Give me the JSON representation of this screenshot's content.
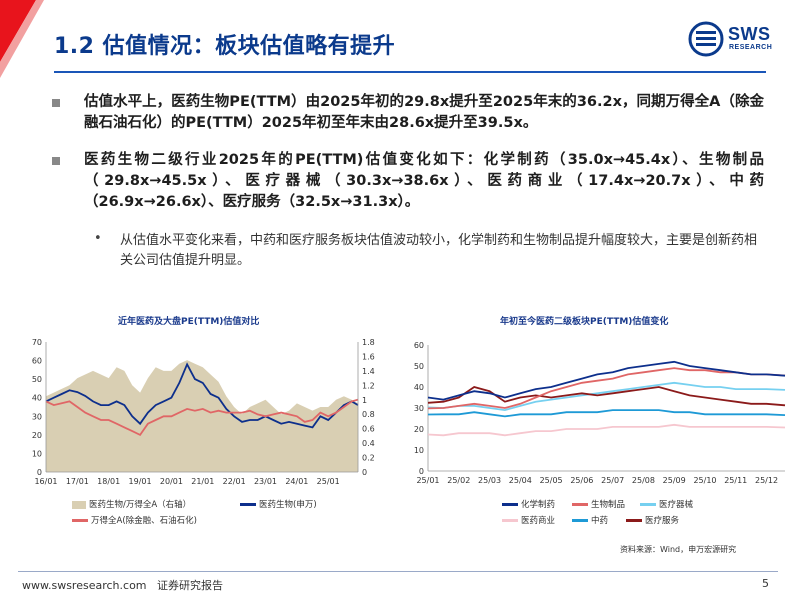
{
  "header": {
    "title": "1.2 估值情况：板块估值略有提升",
    "logo_text": "SWS",
    "logo_subtext": "RESEARCH",
    "accent_color": "#0b3a8c"
  },
  "bullets": [
    {
      "text": "估值水平上，医药生物PE(TTM）由2025年初的29.8x提升至2025年末的36.2x，同期万得全A（除金融石油石化）的PE(TTM）2025年初至年末由28.6x提升至39.5x。"
    },
    {
      "text": "医药生物二级行业2025年的PE(TTM)估值变化如下：化学制药（35.0x→45.4x）、生物制品（29.8x→45.5x）、医疗器械（30.3x→38.6x）、医药商业（17.4x→20.7x）、中药（26.9x→26.6x）、医疗服务（32.5x→31.3x）。"
    }
  ],
  "sub_bullet": {
    "dot": "•",
    "text": "从估值水平变化来看，中药和医疗服务板块估值波动较小，化学制药和生物制品提升幅度较大，主要是创新药相关公司估值提升明显。"
  },
  "chart_data": [
    {
      "type": "line",
      "title": "近年医药及大盘PE(TTM)估值对比",
      "x_ticks": [
        "16/01",
        "17/01",
        "18/01",
        "19/01",
        "20/01",
        "21/01",
        "22/01",
        "23/01",
        "24/01",
        "25/01"
      ],
      "ylim_left": [
        0,
        70
      ],
      "y_ticks_left": [
        0,
        10,
        20,
        30,
        40,
        50,
        60,
        70
      ],
      "ylim_right": [
        0,
        1.8
      ],
      "y_ticks_right": [
        "0",
        "0.2",
        "0.4",
        "0.6",
        "0.8",
        "1",
        "1.2",
        "1.4",
        "1.6",
        "1.8"
      ],
      "x": [
        2016.0,
        2016.25,
        2016.5,
        2016.75,
        2017.0,
        2017.25,
        2017.5,
        2017.75,
        2018.0,
        2018.25,
        2018.5,
        2018.75,
        2019.0,
        2019.25,
        2019.5,
        2019.75,
        2020.0,
        2020.25,
        2020.5,
        2020.75,
        2021.0,
        2021.25,
        2021.5,
        2021.75,
        2022.0,
        2022.25,
        2022.5,
        2022.75,
        2023.0,
        2023.25,
        2023.5,
        2023.75,
        2024.0,
        2024.25,
        2024.5,
        2024.75,
        2025.0,
        2025.25,
        2025.5,
        2025.75,
        2025.95
      ],
      "series": [
        {
          "name": "医药生物/万得全A（右轴）",
          "axis": "right",
          "style": "area",
          "color": "#d9cfb3",
          "values": [
            1.05,
            1.1,
            1.15,
            1.2,
            1.3,
            1.35,
            1.4,
            1.35,
            1.3,
            1.45,
            1.4,
            1.2,
            1.1,
            1.3,
            1.45,
            1.4,
            1.4,
            1.5,
            1.55,
            1.5,
            1.45,
            1.35,
            1.25,
            1.05,
            0.9,
            0.8,
            0.9,
            0.95,
            1.0,
            0.9,
            0.8,
            0.85,
            0.95,
            0.9,
            0.85,
            0.9,
            0.9,
            1.0,
            1.05,
            1.0,
            0.95
          ]
        },
        {
          "name": "医药生物(申万)",
          "axis": "left",
          "style": "line",
          "color": "#0d2f8c",
          "values": [
            38,
            40,
            42,
            44,
            43,
            41,
            38,
            36,
            36,
            38,
            36,
            30,
            26,
            32,
            36,
            38,
            40,
            48,
            58,
            50,
            48,
            42,
            40,
            34,
            30,
            27,
            28,
            28,
            30,
            28,
            26,
            27,
            26,
            25,
            24,
            30,
            28,
            32,
            36,
            38,
            36
          ]
        },
        {
          "name": "万得全A(除金融、石油石化)",
          "axis": "left",
          "style": "line",
          "color": "#e06666",
          "values": [
            38,
            36,
            37,
            38,
            35,
            32,
            30,
            28,
            28,
            26,
            24,
            22,
            20,
            26,
            28,
            30,
            30,
            32,
            34,
            33,
            34,
            32,
            33,
            32,
            32,
            32,
            33,
            31,
            30,
            31,
            32,
            31,
            30,
            27,
            28,
            32,
            30,
            32,
            35,
            38,
            39
          ]
        }
      ]
    },
    {
      "type": "line",
      "title": "年初至今医药二级板块PE(TTM)估值变化",
      "x_ticks": [
        "25/01",
        "25/02",
        "25/03",
        "25/04",
        "25/05",
        "25/06",
        "25/07",
        "25/08",
        "25/09",
        "25/10",
        "25/11",
        "25/12"
      ],
      "ylim": [
        0,
        60
      ],
      "y_ticks": [
        0,
        10,
        20,
        30,
        40,
        50,
        60
      ],
      "x": [
        1.0,
        1.5,
        2.0,
        2.5,
        3.0,
        3.5,
        4.0,
        4.5,
        5.0,
        5.5,
        6.0,
        6.5,
        7.0,
        7.5,
        8.0,
        8.5,
        9.0,
        9.5,
        10.0,
        10.5,
        11.0,
        11.5,
        12.0,
        12.6
      ],
      "series": [
        {
          "name": "化学制药",
          "color": "#0d2f8c",
          "values": [
            35,
            34,
            36,
            38,
            37,
            35,
            37,
            39,
            40,
            42,
            44,
            46,
            47,
            49,
            50,
            51,
            52,
            50,
            49,
            48,
            47,
            46,
            46,
            45.4
          ]
        },
        {
          "name": "生物制品",
          "color": "#e06666",
          "values": [
            29.8,
            30,
            31,
            32,
            31,
            30,
            32,
            35,
            38,
            40,
            42,
            43,
            44,
            46,
            47,
            48,
            49,
            48,
            48,
            47,
            47,
            46,
            46,
            45.5
          ]
        },
        {
          "name": "医疗器械",
          "color": "#76d0f0",
          "values": [
            30.3,
            30,
            31,
            31,
            30,
            29,
            31,
            33,
            34,
            35,
            36,
            37,
            38,
            39,
            40,
            41,
            42,
            41,
            40,
            40,
            39,
            39,
            39,
            38.6
          ]
        },
        {
          "name": "医药商业",
          "color": "#f6c7cf",
          "values": [
            17.4,
            17,
            18,
            18,
            18,
            17,
            18,
            19,
            19,
            20,
            20,
            20,
            21,
            21,
            21,
            21,
            22,
            21,
            21,
            21,
            21,
            21,
            21,
            20.7
          ]
        },
        {
          "name": "中药",
          "color": "#1e9ad6",
          "values": [
            26.9,
            27,
            27,
            28,
            27,
            26,
            27,
            27,
            27,
            28,
            28,
            28,
            29,
            29,
            29,
            29,
            28,
            28,
            27,
            27,
            27,
            27,
            27,
            26.6
          ]
        },
        {
          "name": "医疗服务",
          "color": "#8b1a1a",
          "values": [
            32.5,
            33,
            35,
            40,
            38,
            33,
            35,
            36,
            35,
            36,
            37,
            36,
            37,
            38,
            39,
            40,
            38,
            36,
            35,
            34,
            33,
            32,
            32,
            31.3
          ]
        }
      ]
    }
  ],
  "source_note": "资料来源：Wind，申万宏源研究",
  "footer": {
    "url": "www.swsresearch.com",
    "label": "证券研究报告",
    "page": "5"
  }
}
